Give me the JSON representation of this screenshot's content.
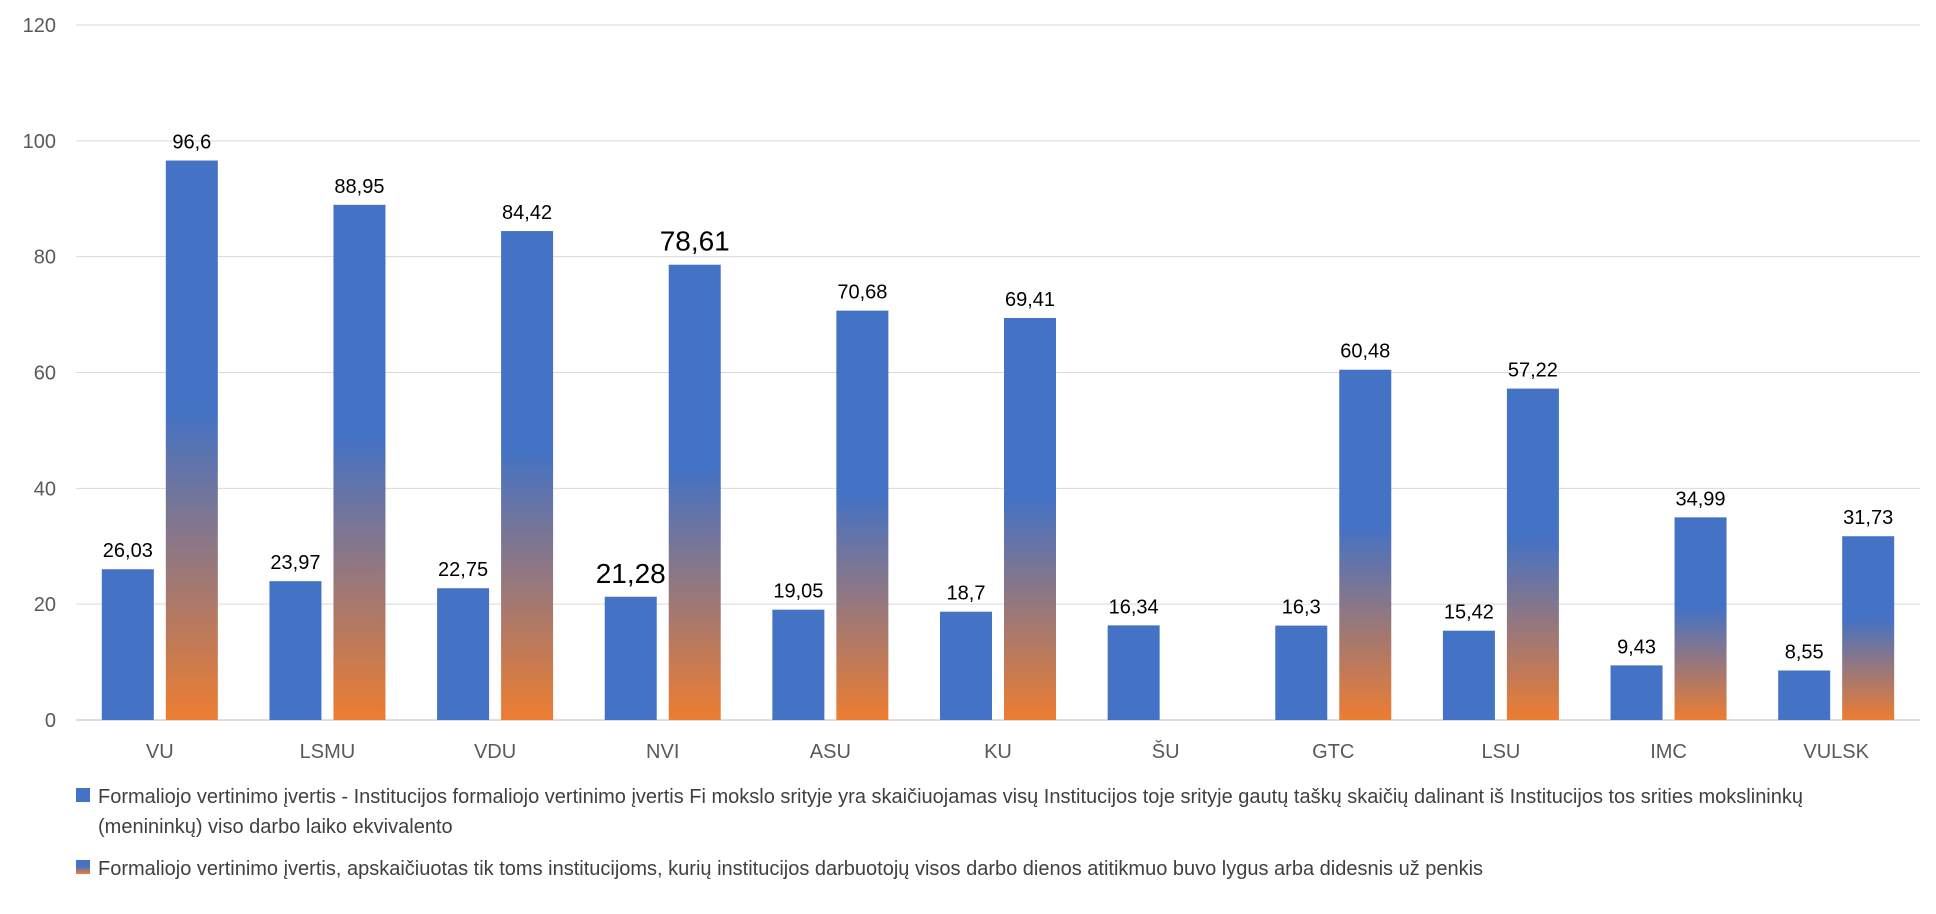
{
  "chart_data": {
    "type": "bar",
    "categories": [
      "VU",
      "LSMU",
      "VDU",
      "NVI",
      "ASU",
      "KU",
      "ŠU",
      "GTC",
      "LSU",
      "IMC",
      "VULSK"
    ],
    "series": [
      {
        "name": "Formaliojo vertinimo įvertis - Institucijos formaliojo vertinimo įvertis Fi mokslo srityje yra skaičiuojamas visų Institucijos toje srityje gautų taškų skaičių dalinant iš Institucijos tos srities mokslininkų (menininkų) viso darbo laiko ekvivalento",
        "values": [
          26.03,
          23.97,
          22.75,
          21.28,
          19.05,
          18.7,
          16.34,
          16.3,
          15.42,
          9.43,
          8.55
        ],
        "labels": [
          "26,03",
          "23,97",
          "22,75",
          "21,28",
          "19,05",
          "18,7",
          "16,34",
          "16,3",
          "15,42",
          "9,43",
          "8,55"
        ],
        "color": "#4472C4"
      },
      {
        "name": "Formaliojo vertinimo įvertis, apskaičiuotas tik toms institucijoms, kurių institucijos darbuotojų visos darbo dienos atitikmuo buvo lygus arba didesnis už penkis",
        "values": [
          96.6,
          88.95,
          84.42,
          78.61,
          70.68,
          69.41,
          null,
          60.48,
          57.22,
          34.99,
          31.73
        ],
        "labels": [
          "96,6",
          "88,95",
          "84,42",
          "78,61",
          "70,68",
          "69,41",
          "",
          "60,48",
          "57,22",
          "34,99",
          "31,73"
        ],
        "color_top": "#4472C4",
        "color_bottom": "#ED7D31"
      }
    ],
    "ylim": [
      0,
      120
    ],
    "yticks": [
      0,
      20,
      40,
      60,
      80,
      100,
      120
    ],
    "grid": true,
    "legend_position": "bottom",
    "emphasized_category": "NVI"
  }
}
